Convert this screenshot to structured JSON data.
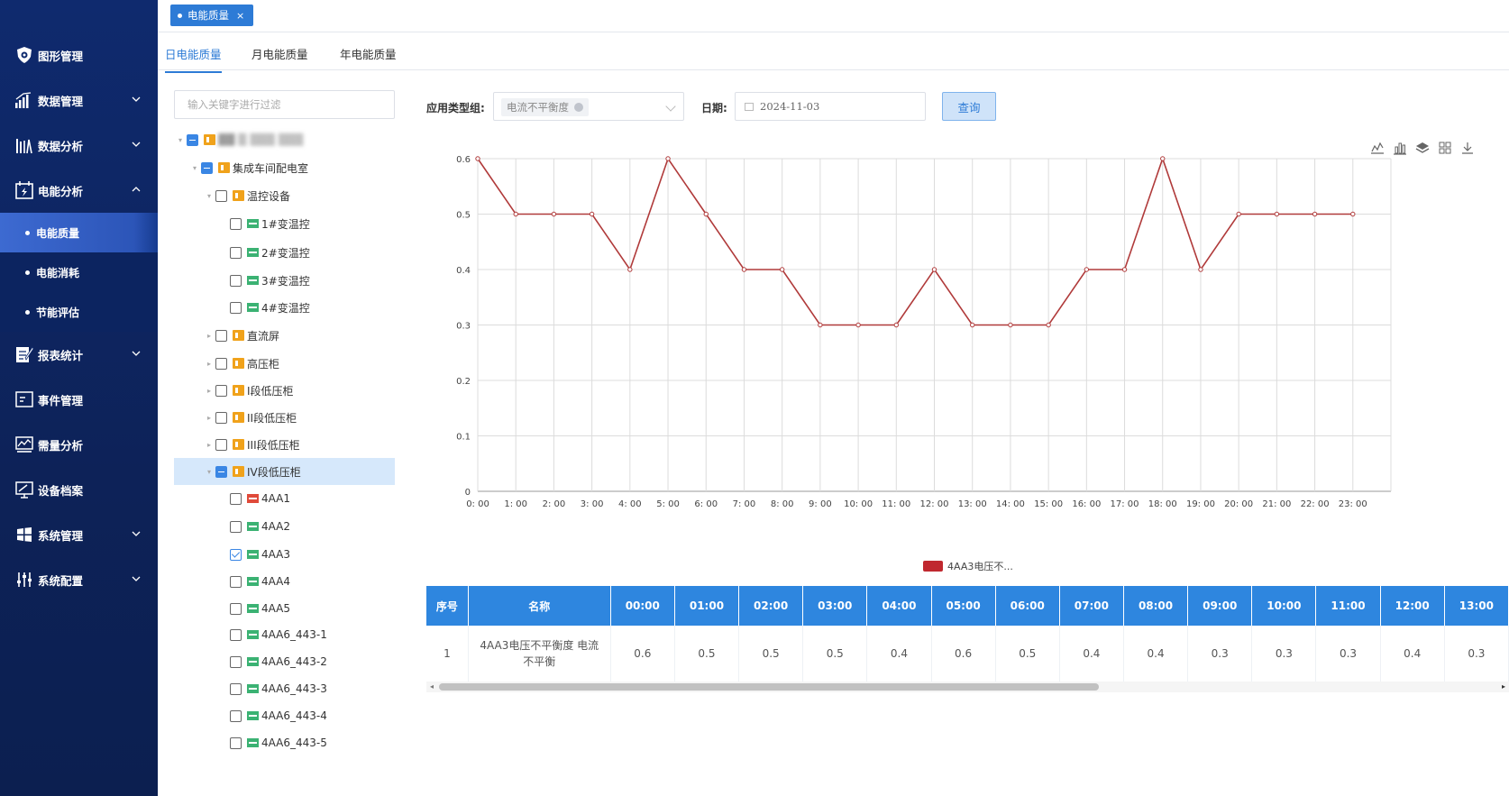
{
  "sidebar": {
    "items": [
      {
        "label": "图形管理",
        "icon": "shield-icon",
        "chevron": ""
      },
      {
        "label": "数据管理",
        "icon": "bar-trend-icon",
        "chevron": "down"
      },
      {
        "label": "数据分析",
        "icon": "analytics-icon",
        "chevron": "down"
      },
      {
        "label": "电能分析",
        "icon": "energy-doc-icon",
        "chevron": "up"
      }
    ],
    "subitems": [
      {
        "label": "电能质量",
        "active": true
      },
      {
        "label": "电能消耗",
        "active": false
      },
      {
        "label": "节能评估",
        "active": false
      }
    ],
    "items2": [
      {
        "label": "报表统计",
        "icon": "report-edit-icon",
        "chevron": "down"
      },
      {
        "label": "事件管理",
        "icon": "event-monitor-icon",
        "chevron": ""
      },
      {
        "label": "需量分析",
        "icon": "demand-chart-icon",
        "chevron": ""
      },
      {
        "label": "设备档案",
        "icon": "device-monitor-icon",
        "chevron": ""
      },
      {
        "label": "系统管理",
        "icon": "windows-grid-icon",
        "chevron": "down"
      },
      {
        "label": "系统配置",
        "icon": "sliders-icon",
        "chevron": "down"
      }
    ]
  },
  "page_tag": {
    "label": "电能质量",
    "close": "×"
  },
  "subtabs": [
    "日电能质量",
    "月电能质量",
    "年电能质量"
  ],
  "tree": {
    "filter_placeholder": "输入关键字进行过滤",
    "nodes": [
      {
        "label": "▓▓ ▒ ▒▒▒ ▒▒▒",
        "level": 0,
        "caret": "▾",
        "check": "ind",
        "icon": "org",
        "blur": true
      },
      {
        "label": "集成车间配电室",
        "level": 1,
        "caret": "▾",
        "check": "ind",
        "icon": "org"
      },
      {
        "label": "温控设备",
        "level": 2,
        "caret": "▾",
        "check": "none",
        "icon": "org"
      },
      {
        "label": "1#变温控",
        "level": 3,
        "caret": "",
        "check": "none",
        "icon": "grn"
      },
      {
        "label": "2#变温控",
        "level": 3,
        "caret": "",
        "check": "none",
        "icon": "grn"
      },
      {
        "label": "3#变温控",
        "level": 3,
        "caret": "",
        "check": "none",
        "icon": "grn"
      },
      {
        "label": "4#变温控",
        "level": 3,
        "caret": "",
        "check": "none",
        "icon": "grn"
      },
      {
        "label": "直流屏",
        "level": 2,
        "caret": "▸",
        "check": "none",
        "icon": "org"
      },
      {
        "label": "高压柜",
        "level": 2,
        "caret": "▸",
        "check": "none",
        "icon": "org"
      },
      {
        "label": "I段低压柜",
        "level": 2,
        "caret": "▸",
        "check": "none",
        "icon": "org"
      },
      {
        "label": "II段低压柜",
        "level": 2,
        "caret": "▸",
        "check": "none",
        "icon": "org"
      },
      {
        "label": "III段低压柜",
        "level": 2,
        "caret": "▸",
        "check": "none",
        "icon": "org"
      },
      {
        "label": "IV段低压柜",
        "level": 2,
        "caret": "▾",
        "check": "ind",
        "icon": "org",
        "hl": true
      },
      {
        "label": "4AA1",
        "level": 3,
        "caret": "",
        "check": "none",
        "icon": "red"
      },
      {
        "label": "4AA2",
        "level": 3,
        "caret": "",
        "check": "none",
        "icon": "grn"
      },
      {
        "label": "4AA3",
        "level": 3,
        "caret": "",
        "check": "chk",
        "icon": "grn"
      },
      {
        "label": "4AA4",
        "level": 3,
        "caret": "",
        "check": "none",
        "icon": "grn"
      },
      {
        "label": "4AA5",
        "level": 3,
        "caret": "",
        "check": "none",
        "icon": "grn"
      },
      {
        "label": "4AA6_443-1",
        "level": 3,
        "caret": "",
        "check": "none",
        "icon": "grn"
      },
      {
        "label": "4AA6_443-2",
        "level": 3,
        "caret": "",
        "check": "none",
        "icon": "grn"
      },
      {
        "label": "4AA6_443-3",
        "level": 3,
        "caret": "",
        "check": "none",
        "icon": "grn"
      },
      {
        "label": "4AA6_443-4",
        "level": 3,
        "caret": "",
        "check": "none",
        "icon": "grn"
      },
      {
        "label": "4AA6_443-5",
        "level": 3,
        "caret": "",
        "check": "none",
        "icon": "grn"
      }
    ]
  },
  "query": {
    "type_label": "应用类型组:",
    "type_value": "电流不平衡度",
    "date_label": "日期:",
    "date_value": "2024-11-03",
    "button": "查询"
  },
  "toolbox": [
    "line-chart-icon",
    "bar-chart-icon",
    "stack-icon",
    "grid-view-icon",
    "download-icon"
  ],
  "chart_data": {
    "type": "line",
    "x": [
      "0:00",
      "1:00",
      "2:00",
      "3:00",
      "4:00",
      "5:00",
      "6:00",
      "7:00",
      "8:00",
      "9:00",
      "10:00",
      "11:00",
      "12:00",
      "13:00",
      "14:00",
      "15:00",
      "16:00",
      "17:00",
      "18:00",
      "19:00",
      "20:00",
      "21:00",
      "22:00",
      "23:00"
    ],
    "series": [
      {
        "name": "4AA3电压不...",
        "color": "#b03a3a",
        "values": [
          0.6,
          0.5,
          0.5,
          0.5,
          0.4,
          0.6,
          0.5,
          0.4,
          0.4,
          0.3,
          0.3,
          0.3,
          0.4,
          0.3,
          0.3,
          0.3,
          0.4,
          0.4,
          0.6,
          0.4,
          0.5,
          0.5,
          0.5,
          0.5
        ]
      }
    ],
    "yticks": [
      "0",
      "0.1",
      "0.2",
      "0.3",
      "0.4",
      "0.5",
      "0.6"
    ],
    "ylim": [
      0,
      0.6
    ],
    "grid": true,
    "legend": "bottom-center"
  },
  "table": {
    "headers": [
      "序号",
      "名称",
      "00:00",
      "01:00",
      "02:00",
      "03:00",
      "04:00",
      "05:00",
      "06:00",
      "07:00",
      "08:00",
      "09:00",
      "10:00",
      "11:00",
      "12:00",
      "13:00"
    ],
    "rows": [
      [
        "1",
        "4AA3电压不平衡度 电流不平衡",
        "0.6",
        "0.5",
        "0.5",
        "0.5",
        "0.4",
        "0.6",
        "0.5",
        "0.4",
        "0.4",
        "0.3",
        "0.3",
        "0.3",
        "0.4",
        "0.3"
      ]
    ]
  }
}
